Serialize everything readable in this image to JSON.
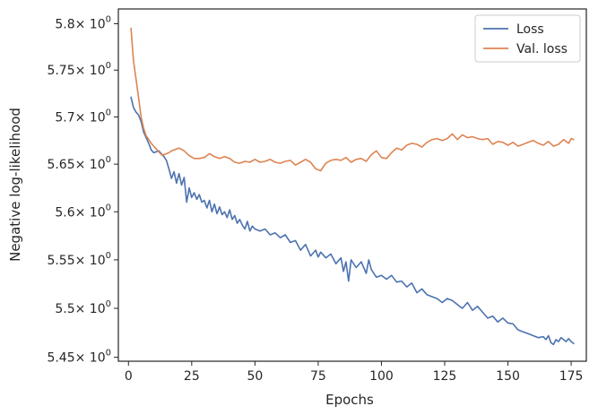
{
  "chart_data": {
    "type": "line",
    "xlabel": "Epochs",
    "ylabel": "Negative log-likelihood",
    "xlim": [
      -4,
      181
    ],
    "ylim": [
      5.446,
      5.816
    ],
    "yscale": "log",
    "grid": false,
    "legend_placement": "top-right",
    "xticks": [
      0,
      25,
      50,
      75,
      100,
      125,
      150,
      175
    ],
    "yticks": [
      {
        "value": 5.45,
        "mantissa": "5.45"
      },
      {
        "value": 5.5,
        "mantissa": "5.5"
      },
      {
        "value": 5.55,
        "mantissa": "5.55"
      },
      {
        "value": 5.6,
        "mantissa": "5.6"
      },
      {
        "value": 5.65,
        "mantissa": "5.65"
      },
      {
        "value": 5.7,
        "mantissa": "5.7"
      },
      {
        "value": 5.75,
        "mantissa": "5.75"
      },
      {
        "value": 5.8,
        "mantissa": "5.8"
      }
    ],
    "ytick_multiplier": "× 10",
    "ytick_exponent": "0",
    "series": [
      {
        "name": "Loss",
        "color": "#4c72b0",
        "x": [
          1,
          2,
          3,
          4,
          5,
          6,
          7,
          8,
          9,
          10,
          12,
          14,
          15,
          16,
          17,
          18,
          19,
          20,
          21,
          22,
          23,
          24,
          25,
          26,
          27,
          28,
          29,
          30,
          31,
          32,
          33,
          34,
          35,
          36,
          37,
          38,
          39,
          40,
          41,
          42,
          43,
          44,
          45,
          46,
          47,
          48,
          49,
          50,
          52,
          54,
          56,
          58,
          60,
          62,
          64,
          66,
          68,
          70,
          72,
          74,
          75,
          76,
          78,
          80,
          82,
          84,
          85,
          86,
          87,
          88,
          90,
          92,
          94,
          95,
          96,
          98,
          100,
          102,
          104,
          106,
          108,
          110,
          112,
          114,
          116,
          118,
          120,
          122,
          124,
          126,
          128,
          130,
          132,
          134,
          136,
          138,
          140,
          142,
          144,
          146,
          148,
          150,
          152,
          154,
          156,
          158,
          160,
          162,
          164,
          165,
          166,
          167,
          168,
          169,
          170,
          171,
          172,
          173,
          174,
          175,
          176
        ],
        "y": [
          5.721,
          5.71,
          5.705,
          5.702,
          5.695,
          5.684,
          5.678,
          5.672,
          5.665,
          5.662,
          5.664,
          5.658,
          5.654,
          5.645,
          5.635,
          5.642,
          5.63,
          5.64,
          5.628,
          5.636,
          5.61,
          5.625,
          5.615,
          5.62,
          5.613,
          5.618,
          5.61,
          5.612,
          5.604,
          5.612,
          5.6,
          5.608,
          5.598,
          5.605,
          5.597,
          5.6,
          5.594,
          5.602,
          5.592,
          5.596,
          5.588,
          5.592,
          5.586,
          5.582,
          5.59,
          5.58,
          5.585,
          5.582,
          5.58,
          5.582,
          5.576,
          5.578,
          5.573,
          5.576,
          5.568,
          5.57,
          5.56,
          5.566,
          5.554,
          5.56,
          5.553,
          5.558,
          5.552,
          5.556,
          5.546,
          5.552,
          5.538,
          5.548,
          5.528,
          5.55,
          5.542,
          5.548,
          5.536,
          5.55,
          5.54,
          5.532,
          5.534,
          5.53,
          5.534,
          5.527,
          5.528,
          5.522,
          5.526,
          5.516,
          5.52,
          5.514,
          5.512,
          5.51,
          5.506,
          5.51,
          5.508,
          5.504,
          5.5,
          5.506,
          5.498,
          5.502,
          5.496,
          5.49,
          5.492,
          5.486,
          5.49,
          5.485,
          5.484,
          5.478,
          5.476,
          5.474,
          5.472,
          5.47,
          5.471,
          5.468,
          5.472,
          5.465,
          5.463,
          5.468,
          5.466,
          5.47,
          5.468,
          5.466,
          5.469,
          5.466,
          5.464
        ]
      },
      {
        "name": "Val. loss",
        "color": "#dd8452",
        "x": [
          1,
          2,
          3,
          4,
          5,
          6,
          7,
          8,
          9,
          10,
          11,
          12,
          13,
          14,
          15,
          16,
          17,
          18,
          20,
          22,
          24,
          26,
          28,
          30,
          32,
          34,
          36,
          38,
          40,
          42,
          44,
          46,
          48,
          50,
          52,
          54,
          56,
          58,
          60,
          62,
          64,
          66,
          68,
          70,
          72,
          74,
          76,
          78,
          80,
          82,
          84,
          86,
          88,
          90,
          92,
          94,
          96,
          98,
          100,
          102,
          104,
          106,
          108,
          110,
          112,
          114,
          116,
          118,
          120,
          122,
          124,
          126,
          128,
          130,
          132,
          134,
          136,
          138,
          140,
          142,
          144,
          146,
          148,
          150,
          152,
          154,
          156,
          158,
          160,
          162,
          164,
          166,
          168,
          170,
          172,
          174,
          175,
          176
        ],
        "y": [
          5.795,
          5.76,
          5.74,
          5.72,
          5.7,
          5.688,
          5.68,
          5.676,
          5.672,
          5.669,
          5.666,
          5.663,
          5.66,
          5.66,
          5.661,
          5.662,
          5.664,
          5.665,
          5.667,
          5.664,
          5.659,
          5.656,
          5.656,
          5.657,
          5.661,
          5.658,
          5.656,
          5.658,
          5.656,
          5.652,
          5.651,
          5.653,
          5.652,
          5.655,
          5.652,
          5.653,
          5.655,
          5.652,
          5.651,
          5.653,
          5.654,
          5.649,
          5.652,
          5.655,
          5.652,
          5.645,
          5.643,
          5.651,
          5.654,
          5.655,
          5.654,
          5.657,
          5.652,
          5.655,
          5.656,
          5.653,
          5.66,
          5.664,
          5.657,
          5.656,
          5.662,
          5.667,
          5.665,
          5.67,
          5.672,
          5.671,
          5.668,
          5.673,
          5.676,
          5.677,
          5.675,
          5.677,
          5.682,
          5.676,
          5.681,
          5.678,
          5.679,
          5.677,
          5.676,
          5.677,
          5.671,
          5.674,
          5.673,
          5.67,
          5.673,
          5.669,
          5.671,
          5.673,
          5.675,
          5.672,
          5.67,
          5.674,
          5.669,
          5.671,
          5.676,
          5.672,
          5.677,
          5.676
        ]
      }
    ]
  }
}
